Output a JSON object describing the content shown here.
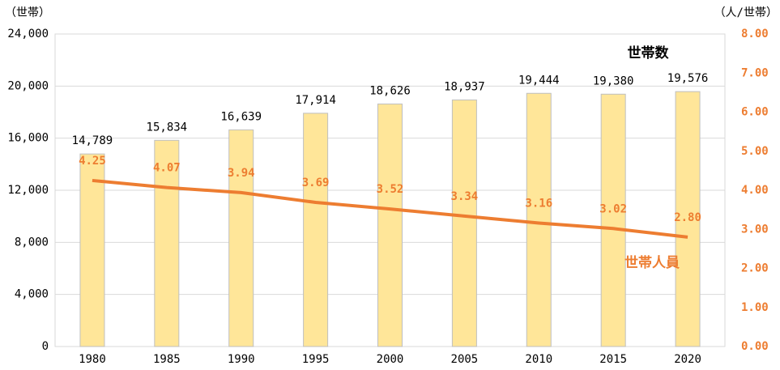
{
  "chart_data": {
    "type": "bar_line",
    "y_label": "（世帯）",
    "y2_label": "（人/世帯）",
    "categories": [
      "1980",
      "1985",
      "1990",
      "1995",
      "2000",
      "2005",
      "2010",
      "2015",
      "2020"
    ],
    "series": [
      {
        "name": "世帯数",
        "type": "bar",
        "color": "#ffe699",
        "values": [
          14789,
          15834,
          16639,
          17914,
          18626,
          18937,
          19444,
          19380,
          19576
        ],
        "value_labels": [
          "14,789",
          "15,834",
          "16,639",
          "17,914",
          "18,626",
          "18,937",
          "19,444",
          "19,380",
          "19,576"
        ]
      },
      {
        "name": "世帯人員",
        "type": "line",
        "axis": "y2",
        "color": "#ed7d31",
        "values": [
          4.25,
          4.07,
          3.94,
          3.69,
          3.52,
          3.34,
          3.16,
          3.02,
          2.8
        ],
        "value_labels": [
          "4.25",
          "4.07",
          "3.94",
          "3.69",
          "3.52",
          "3.34",
          "3.16",
          "3.02",
          "2.80"
        ]
      }
    ],
    "ylim": [
      0,
      24000
    ],
    "yticks": [
      0,
      {
        "value": 4000,
        "label": "4,000"
      },
      {
        "value": 8000,
        "label": "8,000"
      },
      {
        "value": 12000,
        "label": "12,000"
      },
      {
        "value": 16000,
        "label": "16,000"
      },
      {
        "value": 20000,
        "label": "20,000"
      },
      {
        "value": 24000,
        "label": "24,000"
      }
    ],
    "y2lim": [
      0,
      8
    ],
    "y2ticks": [
      {
        "value": 0,
        "label": "0.00"
      },
      {
        "value": 1,
        "label": "1.00"
      },
      {
        "value": 2,
        "label": "2.00"
      },
      {
        "value": 3,
        "label": "3.00"
      },
      {
        "value": 4,
        "label": "4.00"
      },
      {
        "value": 5,
        "label": "5.00"
      },
      {
        "value": 6,
        "label": "6.00"
      },
      {
        "value": 7,
        "label": "7.00"
      },
      {
        "value": 8,
        "label": "8.00"
      }
    ],
    "grid": true
  }
}
